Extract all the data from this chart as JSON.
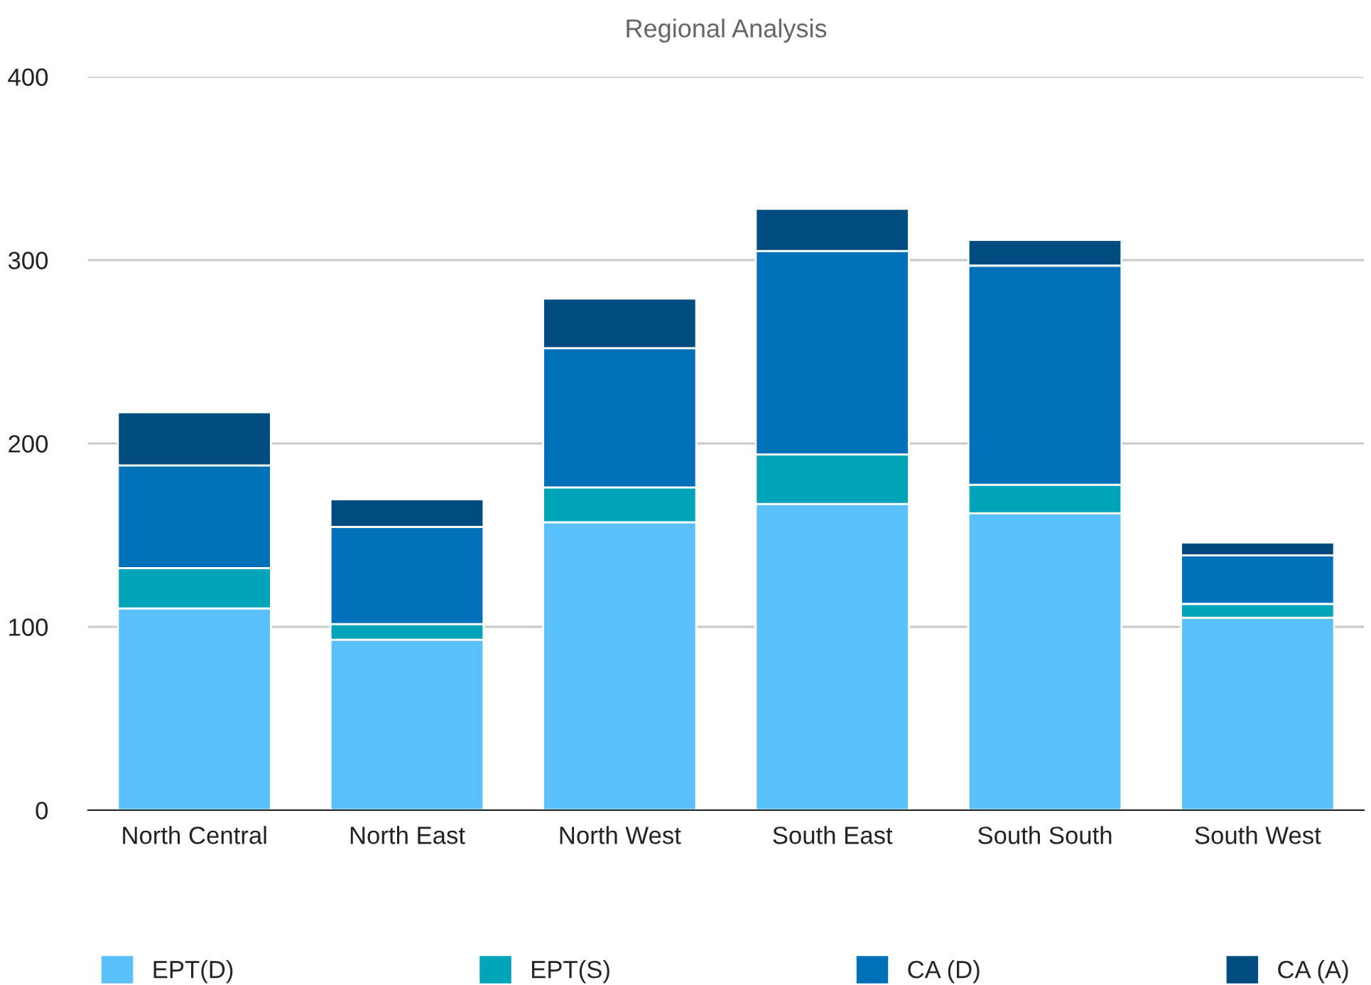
{
  "chart_data": {
    "type": "bar",
    "title": "Regional Analysis",
    "stacked": true,
    "categories": [
      "North Central",
      "North East",
      "North West",
      "South East",
      "South South",
      "South West"
    ],
    "series": [
      {
        "name": "EPT(D)",
        "color": "#5ac0fb",
        "values": [
          110,
          93,
          157,
          167,
          162,
          105
        ]
      },
      {
        "name": "EPT(S)",
        "color": "#00a4b8",
        "values": [
          22,
          8.5,
          19,
          27,
          15.5,
          7.5
        ]
      },
      {
        "name": "CA (D)",
        "color": "#0071b9",
        "values": [
          56,
          53,
          76,
          111,
          119.5,
          26.5
        ]
      },
      {
        "name": "CA (A)",
        "color": "#004c80",
        "values": [
          29,
          15,
          27,
          23,
          14,
          7
        ]
      }
    ],
    "ylim": [
      0,
      400
    ],
    "yticks": [
      0,
      100,
      200,
      300,
      400
    ],
    "grid": "y",
    "legend": "bottom"
  }
}
